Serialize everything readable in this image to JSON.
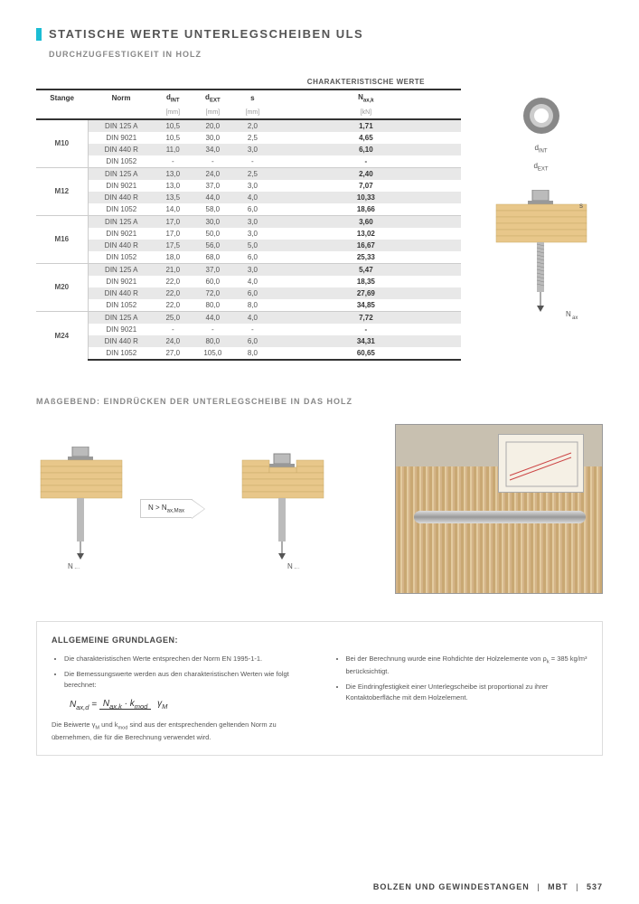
{
  "header": {
    "title": "STATISCHE WERTE UNTERLEGSCHEIBEN ULS",
    "subtitle": "DURCHZUGFESTIGKEIT IN HOLZ"
  },
  "table": {
    "superheader": "CHARAKTERISTISCHE WERTE",
    "cols": {
      "stange": "Stange",
      "norm": "Norm",
      "dint": "dINT",
      "dext": "dEXT",
      "s": "s",
      "naxk": "Nax,k"
    },
    "units": {
      "dint": "[mm]",
      "dext": "[mm]",
      "s": "[mm]",
      "naxk": "[kN]"
    },
    "groups": [
      {
        "stange": "M10",
        "rows": [
          {
            "norm": "DIN 125 A",
            "dint": "10,5",
            "dext": "20,0",
            "s": "2,0",
            "naxk": "1,71"
          },
          {
            "norm": "DIN 9021",
            "dint": "10,5",
            "dext": "30,0",
            "s": "2,5",
            "naxk": "4,65"
          },
          {
            "norm": "DIN 440 R",
            "dint": "11,0",
            "dext": "34,0",
            "s": "3,0",
            "naxk": "6,10"
          },
          {
            "norm": "DIN 1052",
            "dint": "-",
            "dext": "-",
            "s": "-",
            "naxk": "-"
          }
        ]
      },
      {
        "stange": "M12",
        "rows": [
          {
            "norm": "DIN 125 A",
            "dint": "13,0",
            "dext": "24,0",
            "s": "2,5",
            "naxk": "2,40"
          },
          {
            "norm": "DIN 9021",
            "dint": "13,0",
            "dext": "37,0",
            "s": "3,0",
            "naxk": "7,07"
          },
          {
            "norm": "DIN 440 R",
            "dint": "13,5",
            "dext": "44,0",
            "s": "4,0",
            "naxk": "10,33"
          },
          {
            "norm": "DIN 1052",
            "dint": "14,0",
            "dext": "58,0",
            "s": "6,0",
            "naxk": "18,66"
          }
        ]
      },
      {
        "stange": "M16",
        "rows": [
          {
            "norm": "DIN 125 A",
            "dint": "17,0",
            "dext": "30,0",
            "s": "3,0",
            "naxk": "3,60"
          },
          {
            "norm": "DIN 9021",
            "dint": "17,0",
            "dext": "50,0",
            "s": "3,0",
            "naxk": "13,02"
          },
          {
            "norm": "DIN 440 R",
            "dint": "17,5",
            "dext": "56,0",
            "s": "5,0",
            "naxk": "16,67"
          },
          {
            "norm": "DIN 1052",
            "dint": "18,0",
            "dext": "68,0",
            "s": "6,0",
            "naxk": "25,33"
          }
        ]
      },
      {
        "stange": "M20",
        "rows": [
          {
            "norm": "DIN 125 A",
            "dint": "21,0",
            "dext": "37,0",
            "s": "3,0",
            "naxk": "5,47"
          },
          {
            "norm": "DIN 9021",
            "dint": "22,0",
            "dext": "60,0",
            "s": "4,0",
            "naxk": "18,35"
          },
          {
            "norm": "DIN 440 R",
            "dint": "22,0",
            "dext": "72,0",
            "s": "6,0",
            "naxk": "27,69"
          },
          {
            "norm": "DIN 1052",
            "dint": "22,0",
            "dext": "80,0",
            "s": "8,0",
            "naxk": "34,85"
          }
        ]
      },
      {
        "stange": "M24",
        "rows": [
          {
            "norm": "DIN 125 A",
            "dint": "25,0",
            "dext": "44,0",
            "s": "4,0",
            "naxk": "7,72"
          },
          {
            "norm": "DIN 9021",
            "dint": "-",
            "dext": "-",
            "s": "-",
            "naxk": "-"
          },
          {
            "norm": "DIN 440 R",
            "dint": "24,0",
            "dext": "80,0",
            "s": "6,0",
            "naxk": "34,31"
          },
          {
            "norm": "DIN 1052",
            "dint": "27,0",
            "dext": "105,0",
            "s": "8,0",
            "naxk": "60,65"
          }
        ]
      }
    ]
  },
  "side": {
    "dint": "dINT",
    "dext": "dEXT",
    "s_label": "s",
    "nax": "Nax"
  },
  "section2": {
    "title": "MAßGEBEND: EINDRÜCKEN DER UNTERLEGSCHEIBE IN DAS HOLZ",
    "condition": "N > Nax,Max",
    "nax": "Nax"
  },
  "grundlagen": {
    "title": "ALLGEMEINE GRUNDLAGEN:",
    "left": {
      "b1": "Die charakteristischen Werte entsprechen der Norm EN 1995-1-1.",
      "b2": "Die Bemessungswerte werden aus den charakteristischen Werten wie folgt berechnet:",
      "formula_lhs": "Nax,d",
      "formula_num": "Nax,k · kmod",
      "formula_den": "γM",
      "note": "Die Beiwerte γM und kmod sind aus der entsprechenden geltenden Norm zu übernehmen, die für die Berechnung verwendet wird."
    },
    "right": {
      "b1": "Bei der Berechnung wurde eine Rohdichte der Holzelemente von ρk = 385 kg/m³ berücksichtigt.",
      "b2": "Die Eindringfestigkeit einer Unterlegscheibe ist proportional zu ihrer Kontaktoberfläche mit dem Holzelement."
    }
  },
  "footer": {
    "cat": "BOLZEN UND GEWINDESTANGEN",
    "brand": "MBT",
    "page": "537"
  },
  "colors": {
    "accent": "#1bbdd4",
    "wood": "#e8c78a",
    "wood_stroke": "#c9a968",
    "grey_row": "#e8e8e8"
  }
}
